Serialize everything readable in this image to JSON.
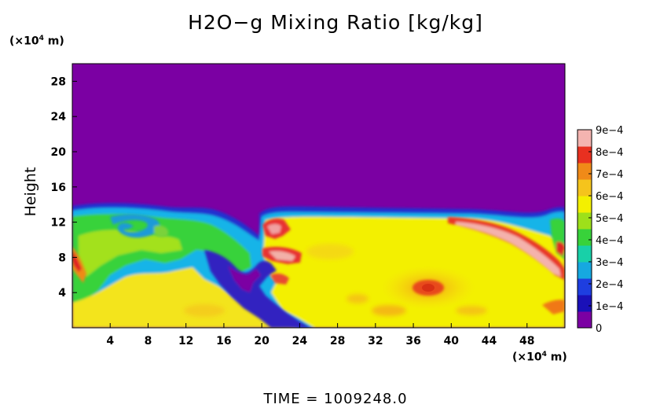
{
  "chart_data": {
    "type": "heatmap",
    "title": "H2O−g Mixing Ratio [kg/kg]",
    "ylabel": "Height",
    "xunit_prefix": "(×10",
    "xunit_exp": "4",
    "xunit_suffix": " m)",
    "yunit_prefix": "(×10",
    "yunit_exp": "4",
    "yunit_suffix": " m)",
    "xlim": [
      0,
      52
    ],
    "ylim": [
      0,
      30
    ],
    "xticks": [
      4,
      8,
      12,
      16,
      20,
      24,
      28,
      32,
      36,
      40,
      44,
      48
    ],
    "yticks": [
      4,
      8,
      12,
      16,
      20,
      24,
      28
    ],
    "colorbar": {
      "range": [
        0,
        0.0009
      ],
      "labels": [
        "0",
        "1e−4",
        "2e−4",
        "3e−4",
        "4e−4",
        "5e−4",
        "6e−4",
        "7e−4",
        "8e−4",
        "9e−4"
      ]
    },
    "time_label": "TIME  =  1009248.0"
  },
  "colors": {
    "dry_background": "#7b00a3",
    "moist_yellow": "#f3f000",
    "frame": "#000000"
  }
}
